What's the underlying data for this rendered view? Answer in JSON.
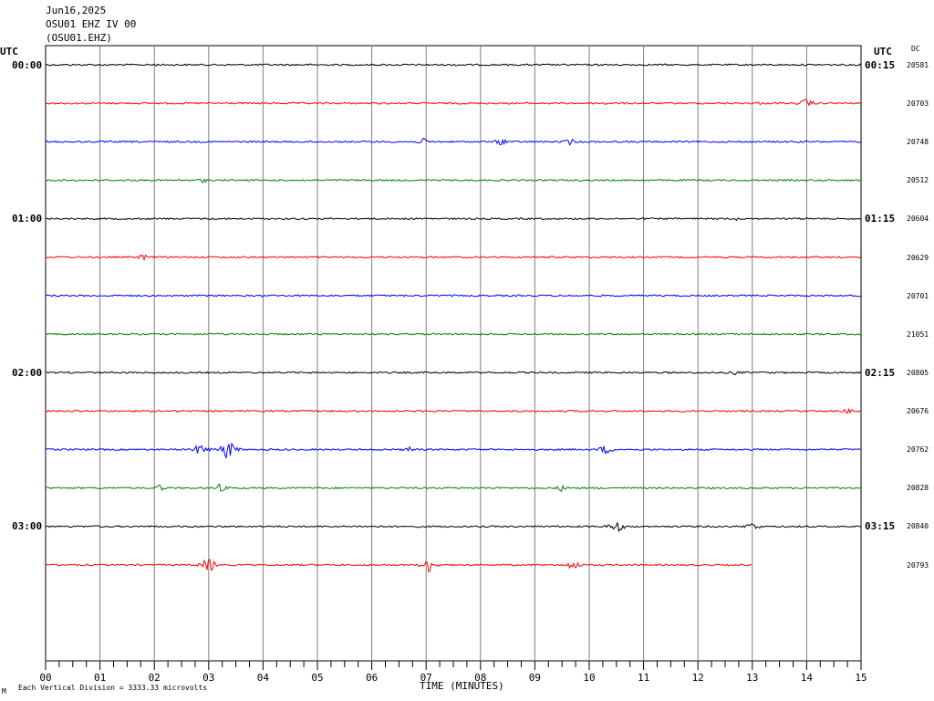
{
  "header": {
    "date": "Jun16,2025",
    "station": "OSU01 EHZ IV 00",
    "channel": "(OSU01.EHZ)"
  },
  "left_axis_title": "UTC",
  "right_axis_title": "UTC",
  "dc_title": "DC",
  "left_time_labels": [
    "00:00",
    "01:00",
    "02:00",
    "03:00"
  ],
  "right_time_labels": [
    "00:15",
    "01:15",
    "02:15",
    "03:15"
  ],
  "dc_values": [
    "20581",
    "20703",
    "20748",
    "20512",
    "20604",
    "20629",
    "20701",
    "21051",
    "20805",
    "20676",
    "20762",
    "20828",
    "20840",
    "20793"
  ],
  "x_tick_labels": [
    "00",
    "01",
    "02",
    "03",
    "04",
    "05",
    "06",
    "07",
    "08",
    "09",
    "10",
    "11",
    "12",
    "13",
    "14",
    "15"
  ],
  "x_axis_label": "TIME (MINUTES)",
  "footer_note": "Each Vertical Division = 3333.33 microvolts",
  "footer_mark": "M",
  "chart_data": {
    "type": "line",
    "xlabel": "TIME (MINUTES)",
    "xlim": [
      0,
      15
    ],
    "trace_colors": [
      "#000000",
      "#ff0000",
      "#0000ff",
      "#008000"
    ],
    "traces": [
      {
        "start": "00:00",
        "end_minute": 15,
        "events": [
          {
            "t": 2.0,
            "amp": 2
          },
          {
            "t": 7.6,
            "amp": 2
          }
        ]
      },
      {
        "start": "00:15",
        "end_minute": 15,
        "events": [
          {
            "t": 10.3,
            "amp": 2
          },
          {
            "t": 13.1,
            "amp": 2
          },
          {
            "t": 14.0,
            "amp": 6
          }
        ]
      },
      {
        "start": "00:30",
        "end_minute": 15,
        "events": [
          {
            "t": 6.95,
            "amp": 4
          },
          {
            "t": 8.4,
            "amp": 5
          },
          {
            "t": 9.65,
            "amp": 4
          },
          {
            "t": 13.8,
            "amp": 2
          }
        ]
      },
      {
        "start": "00:45",
        "end_minute": 15,
        "events": [
          {
            "t": 2.9,
            "amp": 3
          }
        ]
      },
      {
        "start": "01:00",
        "end_minute": 15,
        "events": [
          {
            "t": 12.7,
            "amp": 2
          }
        ]
      },
      {
        "start": "01:15",
        "end_minute": 15,
        "events": [
          {
            "t": 1.8,
            "amp": 4
          }
        ]
      },
      {
        "start": "01:30",
        "end_minute": 15,
        "events": []
      },
      {
        "start": "01:45",
        "end_minute": 15,
        "events": []
      },
      {
        "start": "02:00",
        "end_minute": 15,
        "events": [
          {
            "t": 12.7,
            "amp": 3
          }
        ]
      },
      {
        "start": "02:15",
        "end_minute": 15,
        "events": [
          {
            "t": 14.75,
            "amp": 3
          }
        ]
      },
      {
        "start": "02:30",
        "end_minute": 15,
        "events": [
          {
            "t": 2.85,
            "amp": 8
          },
          {
            "t": 3.35,
            "amp": 13
          },
          {
            "t": 6.7,
            "amp": 4
          },
          {
            "t": 10.3,
            "amp": 6
          }
        ]
      },
      {
        "start": "02:45",
        "end_minute": 15,
        "events": [
          {
            "t": 2.1,
            "amp": 4
          },
          {
            "t": 3.2,
            "amp": 5
          },
          {
            "t": 9.5,
            "amp": 4
          }
        ]
      },
      {
        "start": "03:00",
        "end_minute": 15,
        "events": [
          {
            "t": 10.5,
            "amp": 8
          },
          {
            "t": 13.0,
            "amp": 6
          }
        ]
      },
      {
        "start": "03:15",
        "end_minute": 13,
        "events": [
          {
            "t": 3.0,
            "amp": 10
          },
          {
            "t": 7.05,
            "amp": 9
          },
          {
            "t": 9.7,
            "amp": 7
          }
        ]
      }
    ]
  }
}
